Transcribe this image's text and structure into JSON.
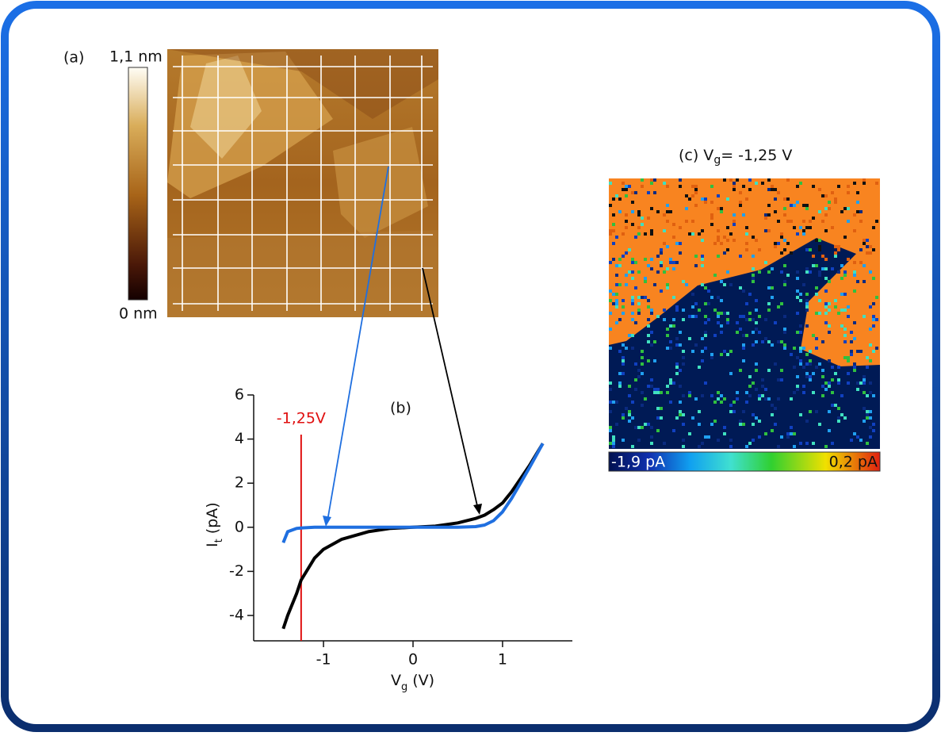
{
  "panel_a": {
    "label": "(a)",
    "colorbar_max": "1,1 nm",
    "colorbar_min": "0 nm"
  },
  "panel_c": {
    "title_prefix": "(c) V",
    "title_subscript": "g",
    "title_suffix": "= -1,25 V",
    "colorbar_min": "-1,9 pA",
    "colorbar_max": "0,2 pA"
  },
  "chart_data": {
    "type": "line",
    "panel_label": "(b)",
    "x_label": {
      "text": "V",
      "subscript": "g",
      "unit": "(V)"
    },
    "y_label": {
      "text": "I",
      "subscript": "t",
      "unit": "(pA)"
    },
    "x": [
      -1.45,
      -1.4,
      -1.3,
      -1.25,
      -1.1,
      -1.0,
      -0.8,
      -0.5,
      -0.25,
      0,
      0.25,
      0.5,
      0.7,
      0.8,
      0.9,
      1.0,
      1.1,
      1.2,
      1.3,
      1.45
    ],
    "series": [
      {
        "color": "#000000",
        "values": [
          -4.6,
          -4.0,
          -3.0,
          -2.4,
          -1.4,
          -1.0,
          -0.55,
          -0.2,
          -0.05,
          0,
          0.05,
          0.2,
          0.4,
          0.55,
          0.8,
          1.1,
          1.6,
          2.2,
          2.8,
          3.8
        ]
      },
      {
        "color": "#1f6fe0",
        "values": [
          -0.7,
          -0.2,
          -0.05,
          -0.03,
          0,
          0,
          0,
          0,
          0,
          0,
          0,
          0,
          0.03,
          0.1,
          0.3,
          0.7,
          1.3,
          2.0,
          2.7,
          3.8
        ]
      }
    ],
    "annotation": {
      "x": -1.25,
      "label": "-1,25V",
      "color": "#e01010"
    },
    "xlim": [
      -1.78,
      1.78
    ],
    "ylim": [
      -5.15,
      6
    ],
    "xticks": [
      -1,
      0,
      1
    ],
    "yticks": [
      -4,
      -2,
      0,
      2,
      4,
      6
    ]
  }
}
